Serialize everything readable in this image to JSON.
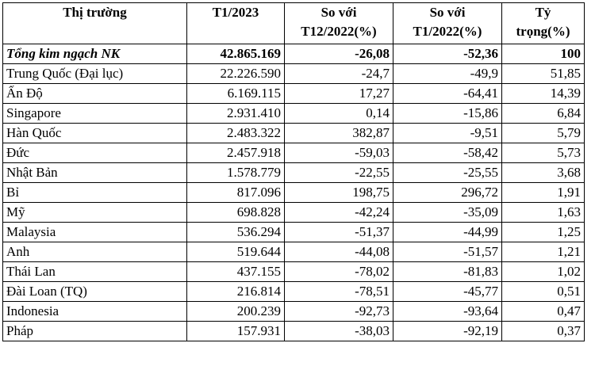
{
  "header": {
    "market": "Thị trường",
    "t1_2023": "T1/2023",
    "vs_t12_l1": "So với",
    "vs_t12_l2": "T12/2022(%)",
    "vs_t1_l1": "So với",
    "vs_t1_l2": "T1/2022(%)",
    "share_l1": "Tỷ",
    "share_l2": "trọng(%)"
  },
  "total": {
    "name": "Tổng kim ngạch NK",
    "value": "42.865.169",
    "vs_t12": "-26,08",
    "vs_t1": "-52,36",
    "share": "100"
  },
  "rows": [
    {
      "name": "Trung Quốc (Đại lục)",
      "value": "22.226.590",
      "vs_t12": "-24,7",
      "vs_t1": "-49,9",
      "share": "51,85"
    },
    {
      "name": "Ấn Độ",
      "value": "6.169.115",
      "vs_t12": "17,27",
      "vs_t1": "-64,41",
      "share": "14,39"
    },
    {
      "name": "Singapore",
      "value": "2.931.410",
      "vs_t12": "0,14",
      "vs_t1": "-15,86",
      "share": "6,84"
    },
    {
      "name": "Hàn Quốc",
      "value": "2.483.322",
      "vs_t12": "382,87",
      "vs_t1": "-9,51",
      "share": "5,79"
    },
    {
      "name": "Đức",
      "value": "2.457.918",
      "vs_t12": "-59,03",
      "vs_t1": "-58,42",
      "share": "5,73"
    },
    {
      "name": "Nhật Bản",
      "value": "1.578.779",
      "vs_t12": "-22,55",
      "vs_t1": "-25,55",
      "share": "3,68"
    },
    {
      "name": "Bỉ",
      "value": "817.096",
      "vs_t12": "198,75",
      "vs_t1": "296,72",
      "share": "1,91"
    },
    {
      "name": "Mỹ",
      "value": "698.828",
      "vs_t12": "-42,24",
      "vs_t1": "-35,09",
      "share": "1,63"
    },
    {
      "name": "Malaysia",
      "value": "536.294",
      "vs_t12": "-51,37",
      "vs_t1": "-44,99",
      "share": "1,25"
    },
    {
      "name": "Anh",
      "value": "519.644",
      "vs_t12": "-44,08",
      "vs_t1": "-51,57",
      "share": "1,21"
    },
    {
      "name": "Thái Lan",
      "value": "437.155",
      "vs_t12": "-78,02",
      "vs_t1": "-81,83",
      "share": "1,02"
    },
    {
      "name": "Đài Loan (TQ)",
      "value": "216.814",
      "vs_t12": "-78,51",
      "vs_t1": "-45,77",
      "share": "0,51"
    },
    {
      "name": "Indonesia",
      "value": "200.239",
      "vs_t12": "-92,73",
      "vs_t1": "-93,64",
      "share": "0,47"
    },
    {
      "name": "Pháp",
      "value": "157.931",
      "vs_t12": "-38,03",
      "vs_t1": "-92,19",
      "share": "0,37"
    }
  ]
}
